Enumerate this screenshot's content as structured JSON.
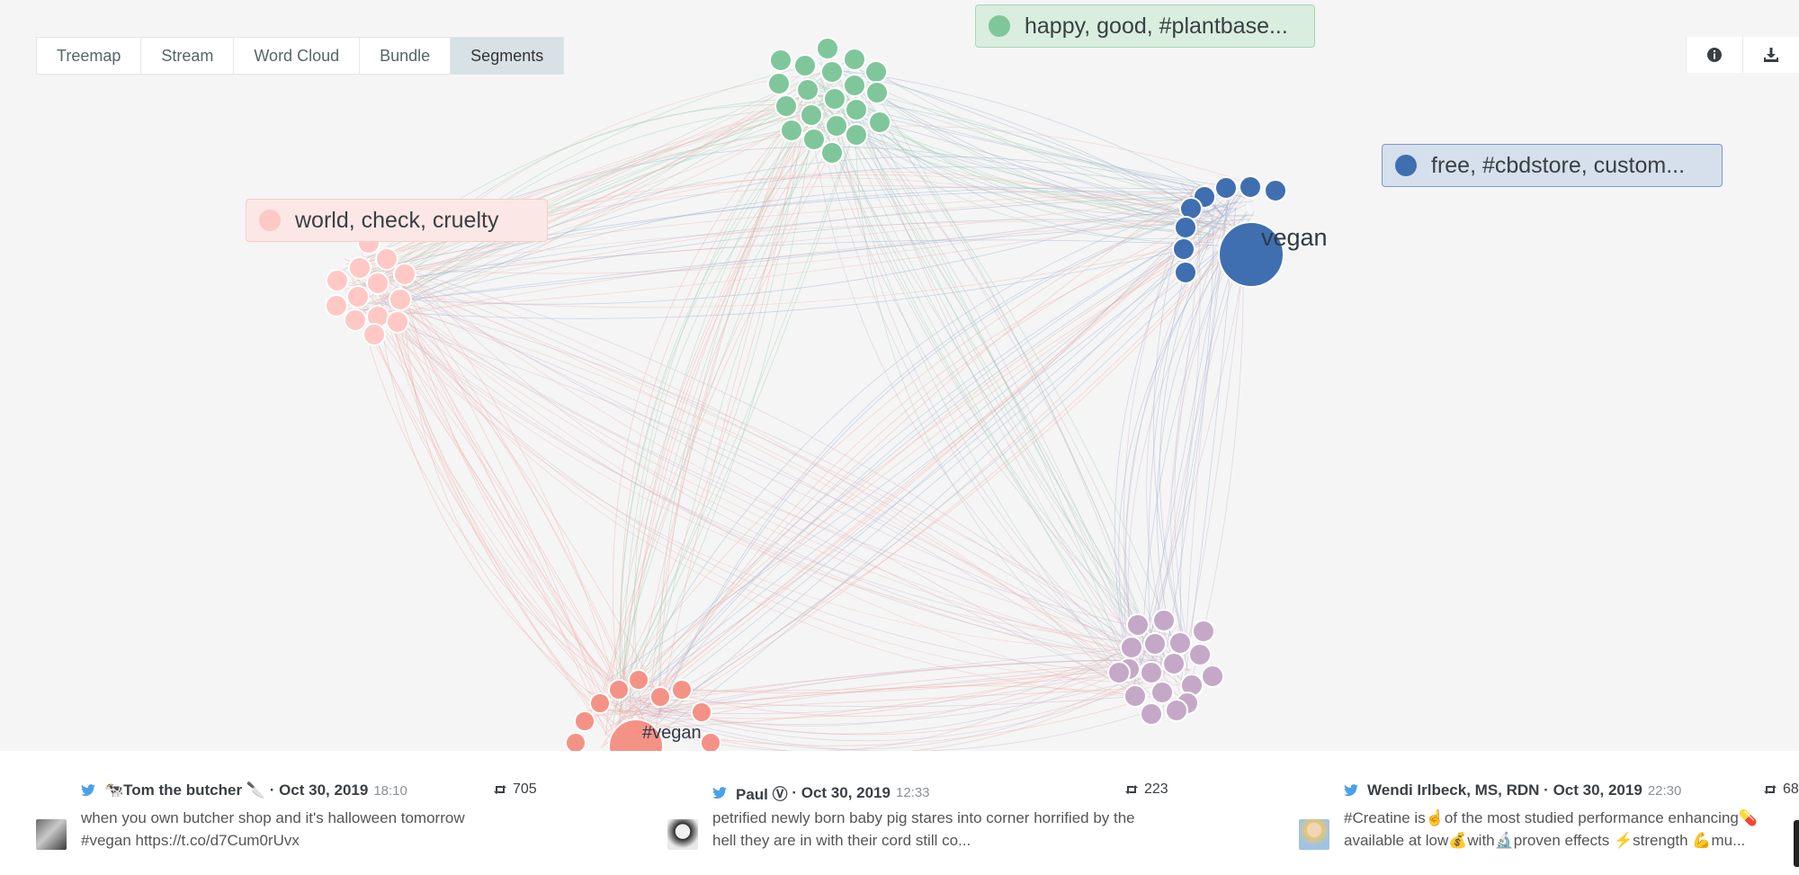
{
  "tabs": [
    "Treemap",
    "Stream",
    "Word Cloud",
    "Bundle",
    "Segments"
  ],
  "active_tab": "Segments",
  "tools": {
    "info_icon": "info-icon",
    "download_icon": "download-icon"
  },
  "segments": [
    {
      "label": "happy, good, #plantbase...",
      "color": "#80c69b",
      "bg": "#d9eede",
      "border": "#a6d7b5"
    },
    {
      "label": "free, #cbdstore, custom...",
      "color": "#3f6fb0",
      "bg": "#d6dfec",
      "border": "#7a99c8"
    },
    {
      "label": "world, check, cruelty",
      "color": "#ffc8c4",
      "bg": "#fbe7e5",
      "border": "#f6cdc8"
    }
  ],
  "node_labels": {
    "vegan": "vegan",
    "hashvegan": "#vegan"
  },
  "colors": {
    "green": "#80c69b",
    "blue": "#3f6fb0",
    "pink": "#ffc8c4",
    "purple": "#c5a8c8",
    "salmon": "#f59286",
    "twitter": "#4aa1eb"
  },
  "tweets": [
    {
      "user": "🐄Tom the butcher 🔪",
      "date": "Oct 30, 2019",
      "time": "18:10",
      "retweets": "705",
      "line1": "when you own butcher shop and it's halloween tomorrow",
      "line2": "#vegan https://t.co/d7Cum0rUvx"
    },
    {
      "user": "Paul Ⓥ",
      "date": "Oct 30, 2019",
      "time": "12:33",
      "retweets": "223",
      "line1": "petrified newly born baby pig stares into corner horrified by the",
      "line2": "hell they are in with their cord still co..."
    },
    {
      "user": "Wendi Irlbeck, MS, RDN",
      "date": "Oct 30, 2019",
      "time": "22:30",
      "retweets": "68",
      "line1": "#Creatine is☝️of the most studied performance enhancing💊",
      "line2": "available at low💰with🔬proven effects ⚡strength 💪mu..."
    }
  ]
}
